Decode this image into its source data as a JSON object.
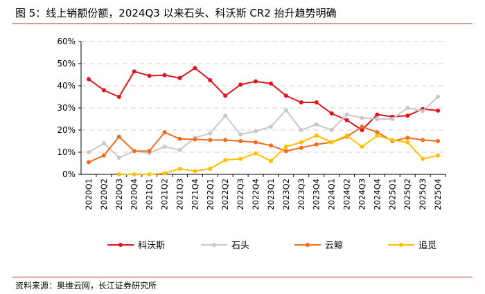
{
  "title": "图 5：线上销额份额，2024Q3 以来石头、科沃斯 CR2 抬升趋势明确",
  "source": "资料来源：奥维云网，长江证券研究所",
  "chart_data": {
    "type": "line",
    "ylim": [
      0,
      60
    ],
    "yticks": [
      "0%",
      "10%",
      "20%",
      "30%",
      "40%",
      "50%",
      "60%"
    ],
    "grid": true,
    "legend_position": "bottom",
    "categories": [
      "2020Q1",
      "2020Q2",
      "2020Q3",
      "2020Q4",
      "2021Q1",
      "2021Q2",
      "2021Q3",
      "2021Q4",
      "2022Q1",
      "2022Q2",
      "2022Q3",
      "2022Q4",
      "2023Q1",
      "2023Q2",
      "2023Q3",
      "2023Q4",
      "2024Q1",
      "2024Q2",
      "2024Q3",
      "2024Q4",
      "2025Q1",
      "2025Q2",
      "2025Q3",
      "2025Q4"
    ],
    "series": [
      {
        "name": "科沃斯",
        "color": "#e0141e",
        "values": [
          43,
          38,
          35,
          46.5,
          44.5,
          44.8,
          43.5,
          48,
          42.5,
          35.5,
          40.5,
          42,
          41,
          35.5,
          32.5,
          32.5,
          27.5,
          24.5,
          20,
          27,
          26,
          26.5,
          29.5,
          28.8
        ]
      },
      {
        "name": "石头",
        "color": "#c8c8c8",
        "values": [
          10,
          14,
          7.5,
          10.5,
          9.5,
          12.5,
          11,
          16.5,
          18.5,
          26.5,
          18,
          19.5,
          21.5,
          29,
          20,
          22.5,
          20,
          27,
          25.5,
          25,
          25,
          30,
          28.5,
          35
        ]
      },
      {
        "name": "云鲸",
        "color": "#f26b1d",
        "values": [
          5.5,
          8.5,
          17,
          10.5,
          10.5,
          19,
          16,
          15.8,
          15.5,
          15.5,
          15,
          14.5,
          13,
          10.5,
          12,
          13.5,
          14.5,
          17,
          21.5,
          19,
          15,
          16.5,
          15.5,
          15
        ]
      },
      {
        "name": "追觅",
        "color": "#ffc000",
        "values": [
          null,
          null,
          0,
          0,
          0,
          0.5,
          2.5,
          1.5,
          2.5,
          6.5,
          7,
          9.5,
          6,
          12.5,
          14.5,
          17.5,
          14.5,
          17.5,
          12.5,
          17.5,
          15.5,
          14.5,
          7,
          8.5
        ]
      }
    ]
  }
}
